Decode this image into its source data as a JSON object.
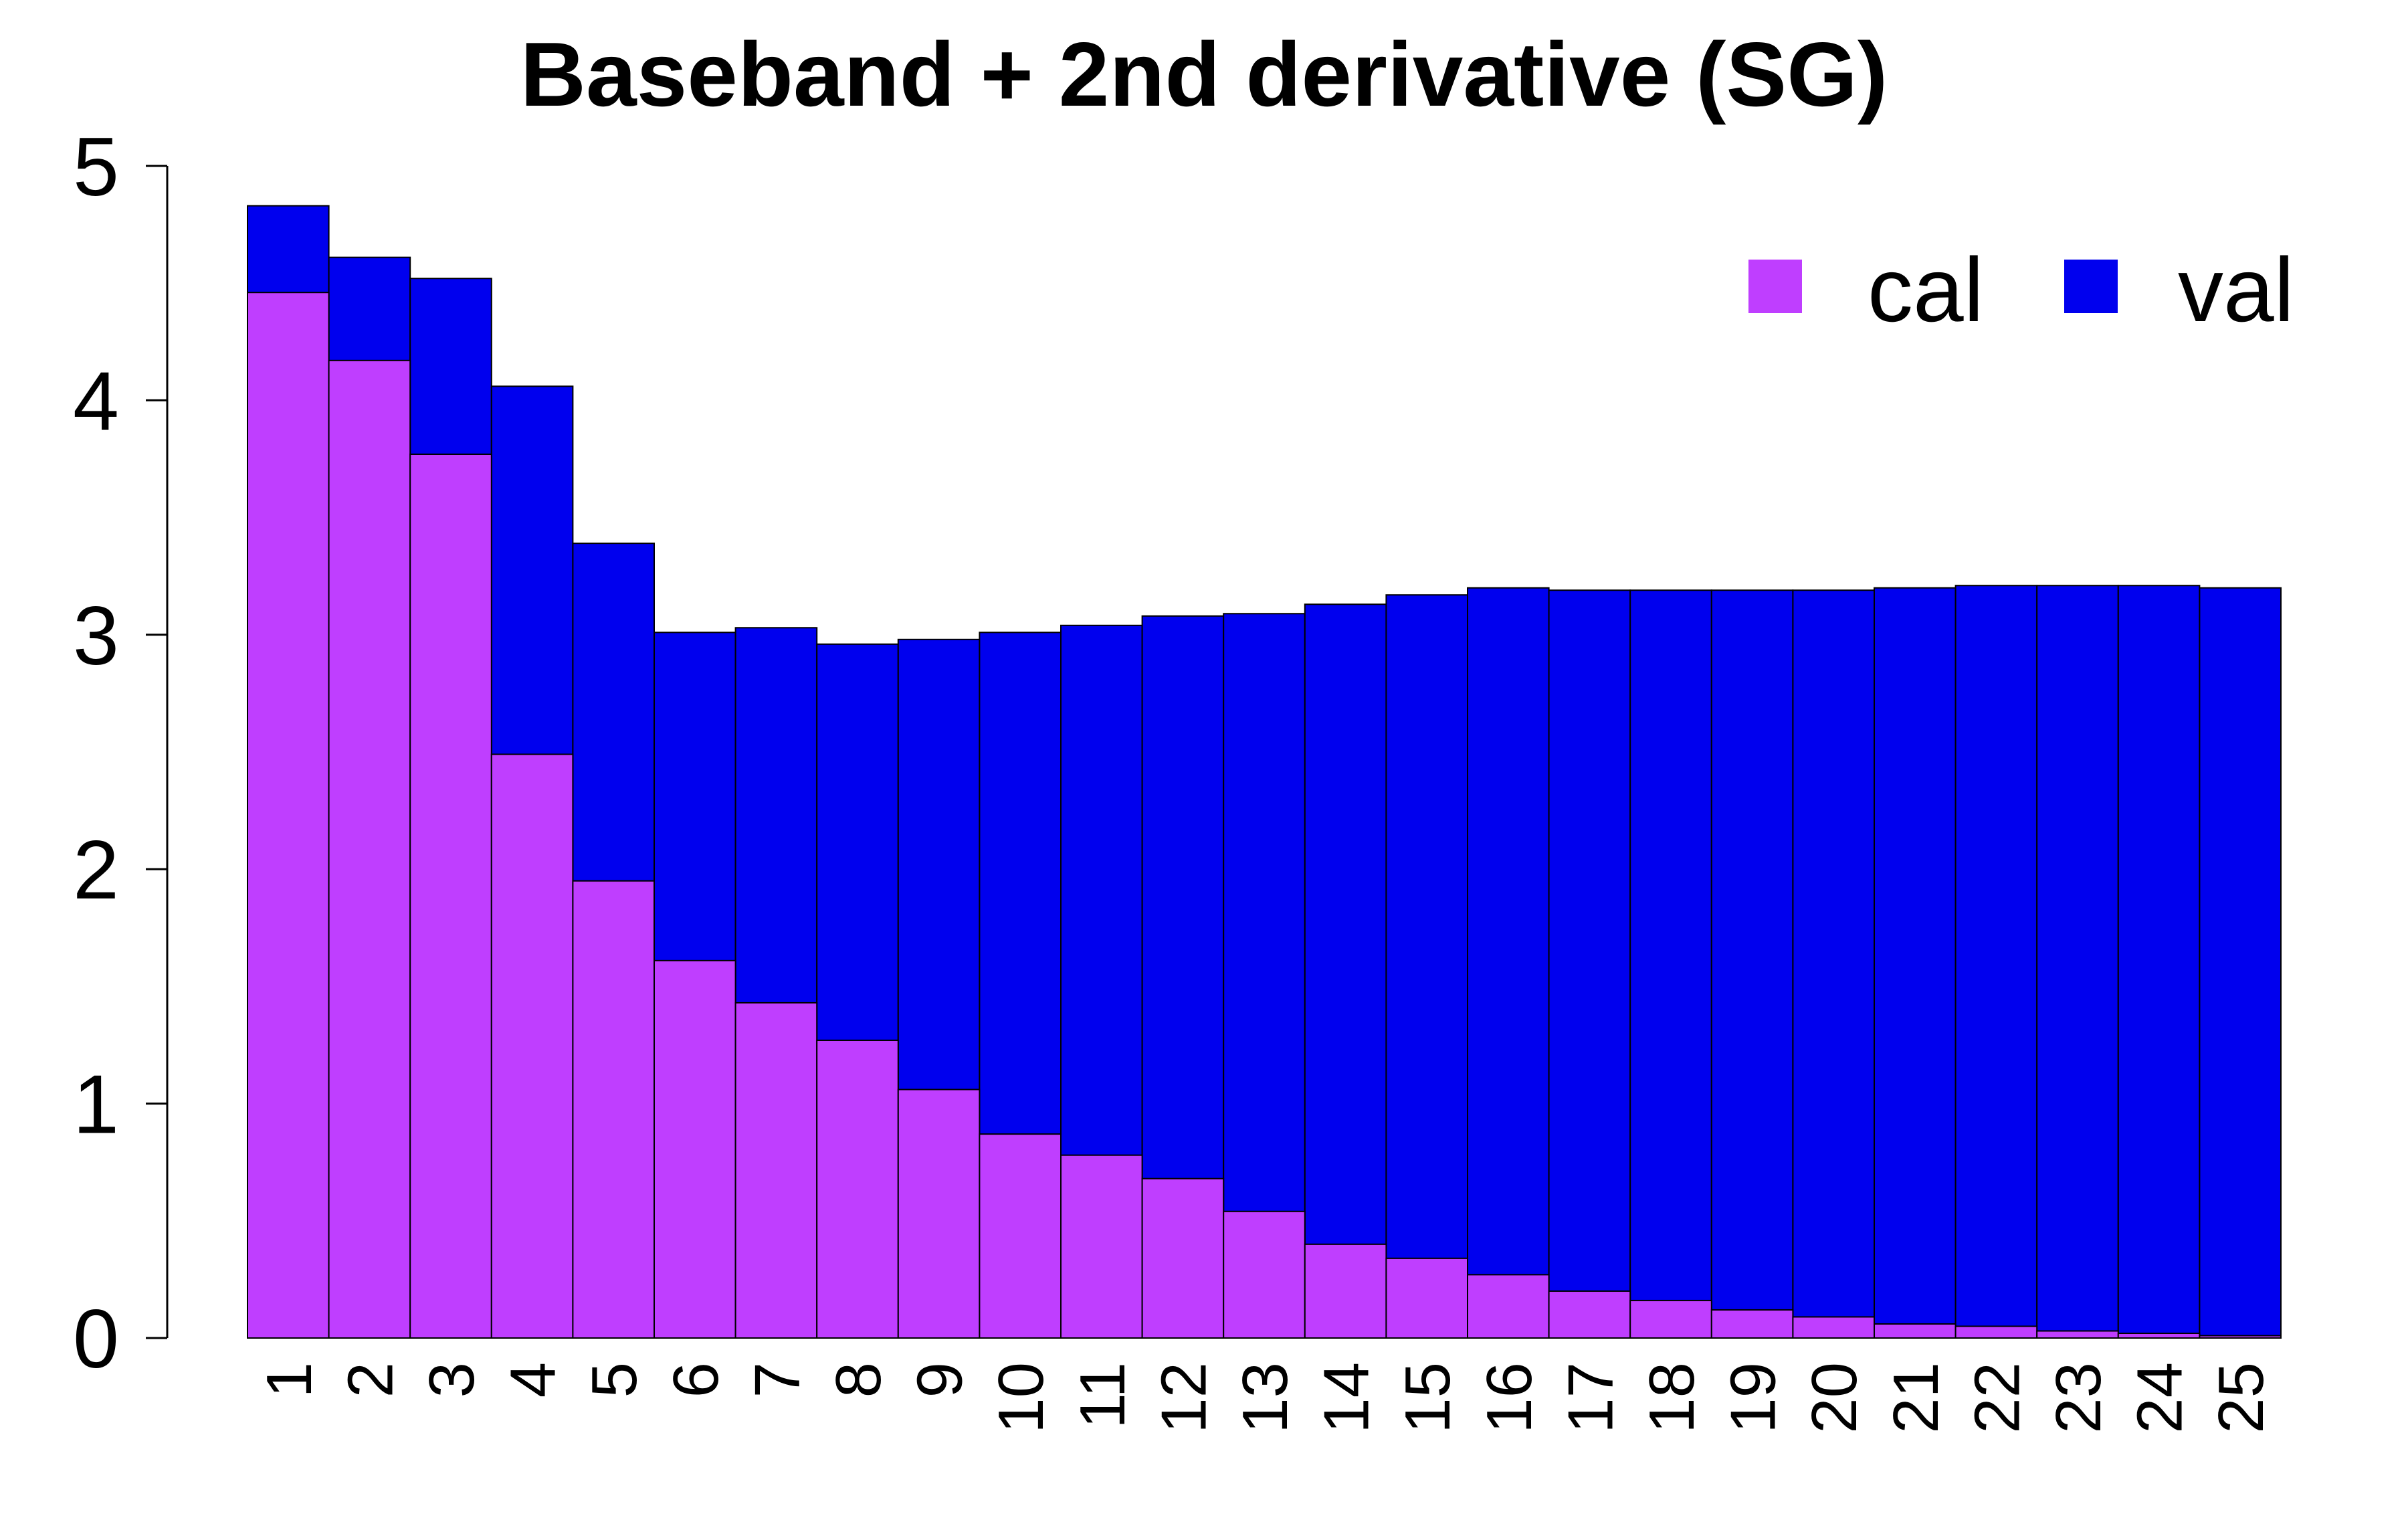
{
  "chart_data": {
    "type": "bar",
    "stacked": "overlay",
    "title": "Baseband + 2nd derivative (SG)",
    "xlabel": "",
    "ylabel": "",
    "ylim": [
      0,
      5
    ],
    "yticks": [
      0,
      1,
      2,
      3,
      4,
      5
    ],
    "grid": false,
    "legend_position": "top-right",
    "categories": [
      "1",
      "2",
      "3",
      "4",
      "5",
      "6",
      "7",
      "8",
      "9",
      "10",
      "11",
      "12",
      "13",
      "14",
      "15",
      "16",
      "17",
      "18",
      "19",
      "20",
      "21",
      "22",
      "23",
      "24",
      "25"
    ],
    "series": [
      {
        "name": "cal",
        "color": "#bf3eff",
        "values": [
          4.46,
          4.17,
          3.77,
          2.49,
          1.95,
          1.61,
          1.43,
          1.27,
          1.06,
          0.87,
          0.78,
          0.68,
          0.54,
          0.4,
          0.34,
          0.27,
          0.2,
          0.16,
          0.12,
          0.09,
          0.06,
          0.05,
          0.03,
          0.02,
          0.01
        ]
      },
      {
        "name": "val",
        "color": "#0000ee",
        "values": [
          4.83,
          4.61,
          4.52,
          4.06,
          3.39,
          3.01,
          3.03,
          2.96,
          2.98,
          3.01,
          3.04,
          3.08,
          3.09,
          3.13,
          3.17,
          3.2,
          3.19,
          3.19,
          3.19,
          3.19,
          3.2,
          3.21,
          3.21,
          3.21,
          3.2
        ]
      }
    ]
  }
}
